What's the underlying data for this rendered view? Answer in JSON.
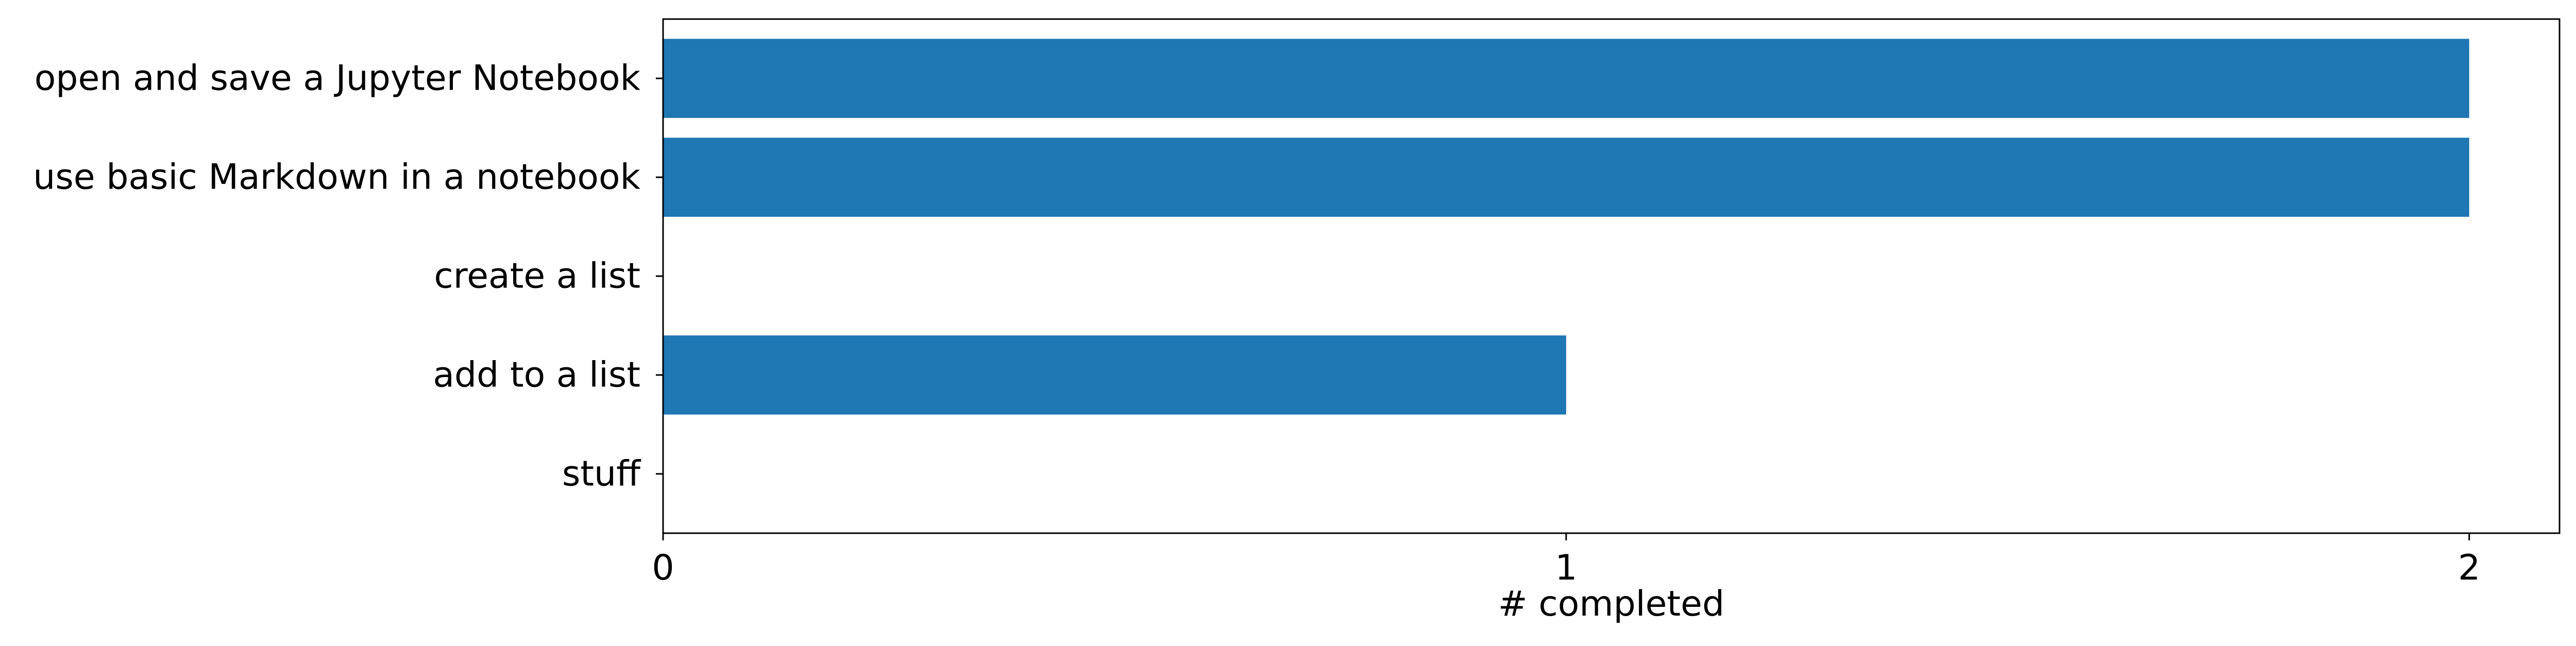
{
  "chart_data": {
    "type": "bar",
    "orientation": "horizontal",
    "categories": [
      "open and save a Jupyter Notebook",
      "use basic Markdown in a notebook",
      "create a list",
      "add  to a list",
      "stuff"
    ],
    "values": [
      2,
      2,
      0,
      1,
      0
    ],
    "title": "",
    "xlabel": "# completed",
    "ylabel": "",
    "xlim": [
      0,
      2.1
    ],
    "xticks": [
      0,
      1,
      2
    ],
    "xtick_labels": [
      "0",
      "1",
      "2"
    ],
    "grid": false,
    "legend": "none",
    "bar_color": "#1f77b4"
  }
}
